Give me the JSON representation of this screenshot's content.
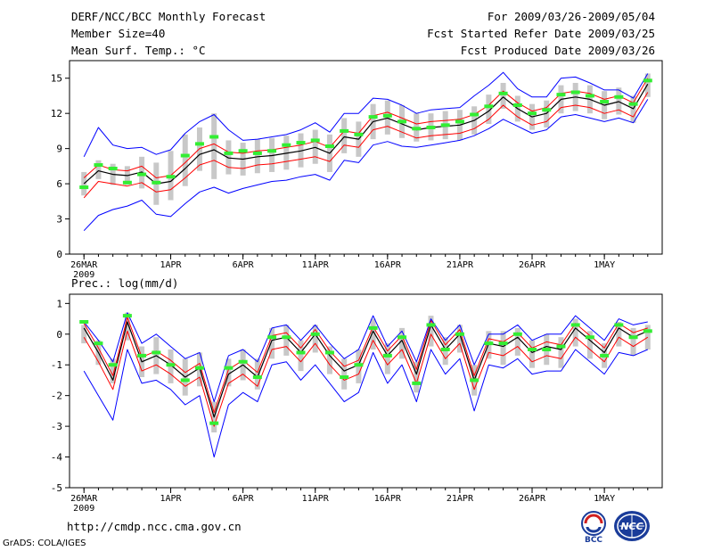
{
  "header": {
    "title": "DERF/NCC/BCC Monthly Forecast",
    "member_size": "Member Size=40",
    "variable": "Mean Surf. Temp.: °C",
    "period": "For 2009/03/26-2009/05/04",
    "started": "Fcst Started Refer Date 2009/03/25",
    "produced": "Fcst Produced Date 2009/03/26"
  },
  "footer": {
    "url": "http://cmdp.ncc.cma.gov.cn",
    "credit": "GrADS: COLA/IGES",
    "logo_bcc_label": "BCC",
    "logo_ncc_label": "NCC"
  },
  "colors": {
    "ensemble_mean": "#000000",
    "inner_spread": "#ff0000",
    "outer_spread": "#0000ff",
    "observed": "#33ee33",
    "member_bars": "#c8c8c8"
  },
  "chart_data": [
    {
      "type": "line",
      "title": "Mean Surf. Temp.: °C",
      "x_tick_labels": [
        "26MAR",
        "1APR",
        "6APR",
        "11APR",
        "16APR",
        "21APR",
        "26APR",
        "1MAY"
      ],
      "x_tick_days": [
        1,
        7,
        12,
        17,
        22,
        27,
        32,
        37
      ],
      "x_sublabel": "2009",
      "y_ticks": [
        0,
        3,
        6,
        9,
        12,
        15
      ],
      "ylim": [
        0,
        16.5
      ],
      "xlim": [
        0,
        41
      ],
      "days": [
        1,
        2,
        3,
        4,
        5,
        6,
        7,
        8,
        9,
        10,
        11,
        12,
        13,
        14,
        15,
        16,
        17,
        18,
        19,
        20,
        21,
        22,
        23,
        24,
        25,
        26,
        27,
        28,
        29,
        30,
        31,
        32,
        33,
        34,
        35,
        36,
        37,
        38,
        39,
        40
      ],
      "series": [
        {
          "name": "mean",
          "values": [
            6.0,
            7.1,
            6.8,
            6.7,
            7.0,
            6.0,
            6.2,
            7.3,
            8.5,
            8.9,
            8.2,
            8.1,
            8.3,
            8.4,
            8.6,
            8.8,
            9.1,
            8.6,
            10.0,
            9.8,
            11.3,
            11.6,
            11.1,
            10.6,
            10.8,
            10.9,
            11.0,
            11.4,
            12.2,
            13.4,
            12.4,
            11.7,
            12.0,
            13.2,
            13.4,
            13.2,
            12.7,
            13.0,
            12.4,
            14.5
          ]
        },
        {
          "name": "upper-inner",
          "values": [
            6.5,
            7.6,
            7.2,
            7.1,
            7.5,
            6.5,
            6.7,
            7.8,
            9.0,
            9.4,
            8.7,
            8.6,
            8.8,
            8.9,
            9.1,
            9.3,
            9.6,
            9.1,
            10.5,
            10.3,
            11.8,
            12.1,
            11.6,
            11.1,
            11.3,
            11.4,
            11.5,
            11.9,
            12.7,
            13.9,
            12.9,
            12.2,
            12.5,
            13.7,
            13.9,
            13.7,
            13.2,
            13.5,
            12.9,
            15.0
          ]
        },
        {
          "name": "lower-inner",
          "values": [
            4.8,
            6.2,
            6.0,
            5.8,
            6.1,
            5.3,
            5.5,
            6.5,
            7.6,
            8.0,
            7.4,
            7.3,
            7.6,
            7.7,
            7.9,
            8.1,
            8.3,
            7.9,
            9.3,
            9.1,
            10.6,
            10.9,
            10.4,
            9.9,
            10.1,
            10.2,
            10.3,
            10.7,
            11.5,
            12.7,
            11.7,
            11.0,
            11.3,
            12.5,
            12.7,
            12.5,
            12.0,
            12.3,
            11.7,
            13.8
          ]
        },
        {
          "name": "upper-outer",
          "values": [
            8.3,
            10.8,
            9.3,
            9.0,
            9.1,
            8.5,
            8.9,
            10.3,
            11.3,
            11.9,
            10.6,
            9.7,
            9.8,
            10.0,
            10.2,
            10.6,
            11.2,
            10.4,
            12.0,
            12.0,
            13.3,
            13.2,
            12.7,
            12.0,
            12.3,
            12.4,
            12.5,
            13.5,
            14.4,
            15.5,
            14.1,
            13.4,
            13.4,
            15.0,
            15.1,
            14.6,
            14.0,
            14.0,
            13.3,
            15.4
          ]
        },
        {
          "name": "lower-outer",
          "values": [
            2.0,
            3.3,
            3.8,
            4.1,
            4.6,
            3.4,
            3.2,
            4.3,
            5.3,
            5.7,
            5.2,
            5.6,
            5.9,
            6.2,
            6.3,
            6.6,
            6.8,
            6.3,
            8.0,
            7.8,
            9.3,
            9.6,
            9.2,
            9.1,
            9.3,
            9.5,
            9.7,
            10.1,
            10.7,
            11.5,
            10.9,
            10.3,
            10.6,
            11.7,
            11.9,
            11.6,
            11.3,
            11.6,
            11.2,
            13.2
          ]
        },
        {
          "name": "observed",
          "values": [
            5.7,
            7.6,
            7.3,
            6.1,
            6.8,
            6.1,
            6.6,
            8.4,
            9.4,
            10.0,
            8.6,
            8.8,
            8.6,
            8.8,
            9.3,
            9.5,
            9.7,
            9.2,
            10.5,
            10.2,
            11.7,
            11.8,
            11.3,
            10.7,
            10.8,
            11.0,
            11.3,
            11.9,
            12.6,
            13.7,
            12.7,
            12.0,
            12.3,
            13.6,
            13.8,
            13.5,
            13.0,
            13.4,
            12.8,
            14.8
          ]
        }
      ],
      "member_bar_ranges": [
        [
          5.0,
          7.0
        ],
        [
          6.4,
          8.0
        ],
        [
          5.9,
          7.7
        ],
        [
          5.9,
          7.5
        ],
        [
          5.6,
          8.3
        ],
        [
          4.2,
          7.8
        ],
        [
          4.6,
          8.8
        ],
        [
          5.8,
          10.2
        ],
        [
          7.1,
          10.8
        ],
        [
          6.4,
          12.0
        ],
        [
          6.8,
          9.7
        ],
        [
          6.7,
          9.5
        ],
        [
          6.9,
          9.8
        ],
        [
          7.0,
          9.9
        ],
        [
          7.2,
          10.1
        ],
        [
          7.4,
          10.3
        ],
        [
          7.7,
          10.6
        ],
        [
          7.0,
          10.2
        ],
        [
          8.6,
          11.6
        ],
        [
          8.3,
          11.3
        ],
        [
          9.8,
          12.8
        ],
        [
          10.2,
          13.1
        ],
        [
          9.9,
          12.7
        ],
        [
          9.6,
          12.0
        ],
        [
          9.7,
          12.0
        ],
        [
          9.8,
          12.2
        ],
        [
          9.7,
          12.3
        ],
        [
          10.2,
          12.6
        ],
        [
          11.1,
          13.6
        ],
        [
          12.4,
          14.6
        ],
        [
          11.3,
          13.5
        ],
        [
          10.6,
          12.8
        ],
        [
          10.8,
          13.1
        ],
        [
          12.0,
          14.4
        ],
        [
          12.2,
          14.6
        ],
        [
          12.0,
          14.4
        ],
        [
          11.5,
          13.9
        ],
        [
          11.9,
          14.2
        ],
        [
          11.2,
          13.5
        ],
        [
          13.4,
          15.4
        ]
      ]
    },
    {
      "type": "line",
      "title": "Prec.: log(mm/d)",
      "x_tick_labels": [
        "26MAR",
        "1APR",
        "6APR",
        "11APR",
        "16APR",
        "21APR",
        "26APR",
        "1MAY"
      ],
      "x_tick_days": [
        1,
        7,
        12,
        17,
        22,
        27,
        32,
        37
      ],
      "x_sublabel": "2009",
      "y_ticks": [
        -5,
        -4,
        -3,
        -2,
        -1,
        0,
        1
      ],
      "ylim": [
        -5,
        1.3
      ],
      "xlim": [
        0,
        41
      ],
      "days": [
        1,
        2,
        3,
        4,
        5,
        6,
        7,
        8,
        9,
        10,
        11,
        12,
        13,
        14,
        15,
        16,
        17,
        18,
        19,
        20,
        21,
        22,
        23,
        24,
        25,
        26,
        27,
        28,
        29,
        30,
        31,
        32,
        33,
        34,
        35,
        36,
        37,
        38,
        39,
        40
      ],
      "series": [
        {
          "name": "mean",
          "values": [
            0.2,
            -0.6,
            -1.5,
            0.4,
            -0.9,
            -0.7,
            -1.0,
            -1.4,
            -1.1,
            -2.7,
            -1.3,
            -1.0,
            -1.4,
            -0.2,
            -0.1,
            -0.6,
            0.0,
            -0.7,
            -1.2,
            -1.0,
            0.1,
            -0.7,
            -0.2,
            -1.3,
            0.3,
            -0.5,
            0.0,
            -1.5,
            -0.3,
            -0.4,
            -0.1,
            -0.6,
            -0.4,
            -0.5,
            0.2,
            -0.2,
            -0.6,
            0.2,
            -0.1,
            0.1
          ]
        },
        {
          "name": "upper-inner",
          "values": [
            0.35,
            -0.45,
            -1.35,
            0.55,
            -0.75,
            -0.55,
            -0.85,
            -1.25,
            -0.95,
            -2.55,
            -1.15,
            -0.85,
            -1.25,
            -0.05,
            0.05,
            -0.45,
            0.15,
            -0.55,
            -1.05,
            -0.85,
            0.25,
            -0.55,
            -0.05,
            -1.15,
            0.45,
            -0.35,
            0.15,
            -1.35,
            -0.15,
            -0.25,
            0.05,
            -0.45,
            -0.25,
            -0.35,
            0.35,
            -0.05,
            -0.45,
            0.35,
            0.05,
            0.2
          ]
        },
        {
          "name": "lower-inner",
          "values": [
            -0.1,
            -0.9,
            -1.8,
            0.1,
            -1.2,
            -1.0,
            -1.3,
            -1.7,
            -1.4,
            -3.0,
            -1.6,
            -1.3,
            -1.7,
            -0.5,
            -0.4,
            -0.9,
            -0.3,
            -1.0,
            -1.5,
            -1.3,
            -0.2,
            -1.0,
            -0.5,
            -1.6,
            0.0,
            -0.8,
            -0.3,
            -1.8,
            -0.6,
            -0.7,
            -0.4,
            -0.9,
            -0.7,
            -0.8,
            -0.1,
            -0.5,
            -0.9,
            -0.1,
            -0.4,
            -0.1
          ]
        },
        {
          "name": "upper-outer",
          "values": [
            0.4,
            -0.2,
            -0.9,
            0.7,
            -0.3,
            0.0,
            -0.4,
            -0.8,
            -0.6,
            -2.2,
            -0.7,
            -0.5,
            -0.9,
            0.2,
            0.3,
            -0.2,
            0.3,
            -0.3,
            -0.8,
            -0.5,
            0.6,
            -0.4,
            0.1,
            -0.9,
            0.5,
            -0.2,
            0.3,
            -1.0,
            0.0,
            0.0,
            0.3,
            -0.2,
            0.0,
            0.0,
            0.6,
            0.2,
            -0.2,
            0.5,
            0.3,
            0.4
          ]
        },
        {
          "name": "lower-outer",
          "values": [
            -1.2,
            -2.0,
            -2.8,
            -0.5,
            -1.6,
            -1.5,
            -1.8,
            -2.3,
            -2.0,
            -4.0,
            -2.3,
            -1.9,
            -2.2,
            -1.0,
            -0.9,
            -1.5,
            -1.0,
            -1.6,
            -2.2,
            -1.9,
            -0.6,
            -1.6,
            -1.0,
            -2.2,
            -0.5,
            -1.3,
            -0.8,
            -2.5,
            -1.0,
            -1.1,
            -0.8,
            -1.3,
            -1.2,
            -1.2,
            -0.5,
            -0.9,
            -1.3,
            -0.6,
            -0.7,
            -0.5
          ]
        },
        {
          "name": "observed",
          "values": [
            0.4,
            -0.3,
            -1.0,
            0.6,
            -0.7,
            -0.6,
            -1.0,
            -1.5,
            -1.1,
            -2.9,
            -1.1,
            -0.9,
            -1.4,
            -0.1,
            -0.1,
            -0.6,
            0.0,
            -0.6,
            -1.4,
            -1.0,
            0.2,
            -0.7,
            -0.1,
            -1.6,
            0.3,
            -0.5,
            0.0,
            -1.5,
            -0.3,
            -0.3,
            0.0,
            -0.5,
            -0.5,
            -0.4,
            0.3,
            -0.1,
            -0.7,
            0.3,
            -0.1,
            0.1
          ]
        }
      ],
      "member_bar_ranges": [
        [
          -0.3,
          0.3
        ],
        [
          -1.0,
          -0.2
        ],
        [
          -1.6,
          -0.8
        ],
        [
          -0.2,
          0.7
        ],
        [
          -1.4,
          -0.4
        ],
        [
          -1.3,
          -0.1
        ],
        [
          -1.6,
          -0.5
        ],
        [
          -2.0,
          -0.8
        ],
        [
          -1.7,
          -0.6
        ],
        [
          -3.2,
          -2.2
        ],
        [
          -1.7,
          -0.8
        ],
        [
          -1.5,
          -0.5
        ],
        [
          -1.8,
          -0.8
        ],
        [
          -0.8,
          0.2
        ],
        [
          -0.7,
          0.3
        ],
        [
          -1.2,
          -0.2
        ],
        [
          -0.6,
          0.3
        ],
        [
          -1.3,
          -0.4
        ],
        [
          -1.8,
          -0.8
        ],
        [
          -1.6,
          -0.5
        ],
        [
          -0.5,
          0.5
        ],
        [
          -1.3,
          -0.3
        ],
        [
          -0.8,
          0.2
        ],
        [
          -1.9,
          -0.9
        ],
        [
          -0.4,
          0.6
        ],
        [
          -1.0,
          -0.1
        ],
        [
          -0.6,
          0.3
        ],
        [
          -2.0,
          -1.0
        ],
        [
          -0.8,
          0.1
        ],
        [
          -1.0,
          0.1
        ],
        [
          -0.7,
          0.2
        ],
        [
          -1.1,
          -0.2
        ],
        [
          -1.0,
          0.0
        ],
        [
          -1.1,
          -0.1
        ],
        [
          -0.4,
          0.5
        ],
        [
          -0.8,
          0.1
        ],
        [
          -1.1,
          -0.3
        ],
        [
          -0.4,
          0.4
        ],
        [
          -0.7,
          0.2
        ],
        [
          -0.5,
          0.3
        ]
      ]
    }
  ]
}
